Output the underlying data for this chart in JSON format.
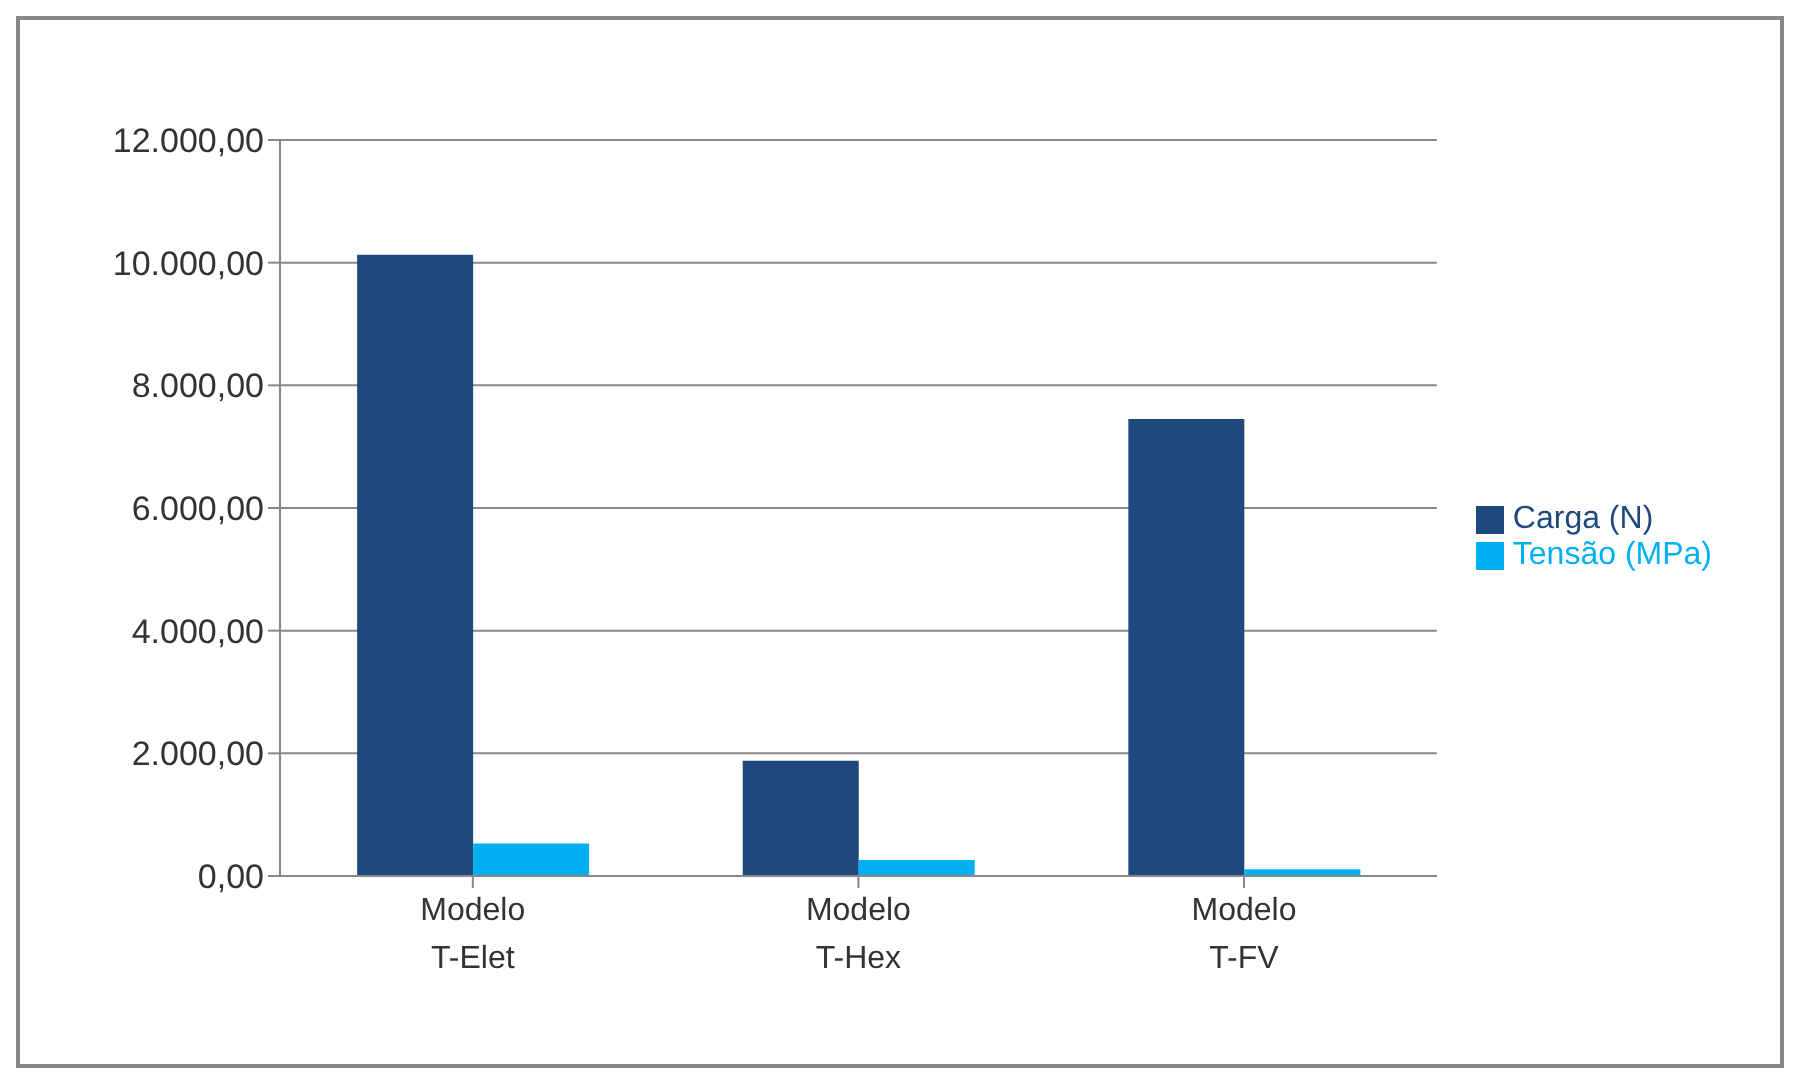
{
  "chart_data": {
    "type": "bar",
    "categories": [
      "Modelo T-Elet",
      "Modelo T-Hex",
      "Modelo T-FV"
    ],
    "series": [
      {
        "name": "Carga (N)",
        "color": "#1f497d",
        "values": [
          10130,
          1880,
          7450
        ]
      },
      {
        "name": "Tensão (MPa)",
        "color": "#00b0f0",
        "values": [
          530,
          260,
          110
        ]
      }
    ],
    "ylim": [
      0,
      12000
    ],
    "yticks": [
      {
        "value": 0,
        "label": "0,00"
      },
      {
        "value": 2000,
        "label": "2.000,00"
      },
      {
        "value": 4000,
        "label": "4.000,00"
      },
      {
        "value": 6000,
        "label": "6.000,00"
      },
      {
        "value": 8000,
        "label": "8.000,00"
      },
      {
        "value": 10000,
        "label": "10.000,00"
      },
      {
        "value": 12000,
        "label": "12.000,00"
      }
    ],
    "grid": "y",
    "legend": "right"
  }
}
